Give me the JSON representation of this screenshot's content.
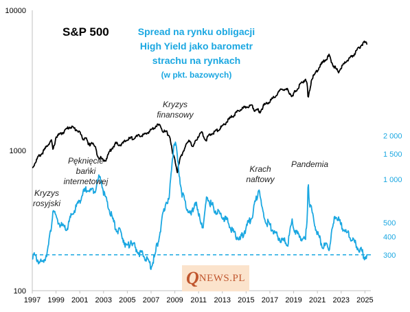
{
  "chart_data": {
    "type": "line",
    "title": "S&P 500",
    "secondary_title": [
      "Spread na rynku obligacji",
      "High Yield jako barometr",
      "strachu na rynkach"
    ],
    "secondary_subtitle": "(w pkt. bazowych)",
    "x_ticks": [
      "1997",
      "1999",
      "2001",
      "2003",
      "2005",
      "2007",
      "2009",
      "2011",
      "2013",
      "2015",
      "2017",
      "2019",
      "2021",
      "2023",
      "2025"
    ],
    "xlim": [
      1997,
      2025.5
    ],
    "left_axis": {
      "scale": "log",
      "ticks": [
        "10000",
        "1000",
        "100"
      ],
      "ylim": [
        100,
        10000
      ]
    },
    "right_axis": {
      "scale": "log",
      "ticks": [
        "2 000",
        "1 500",
        "1 000",
        "500",
        "400",
        "300"
      ],
      "ylim": [
        230,
        2300
      ]
    },
    "series": [
      {
        "name": "S&P 500",
        "axis": "left",
        "color": "#000000",
        "x": [
          1997.0,
          1997.5,
          1997.8,
          1998.0,
          1998.3,
          1998.6,
          1998.75,
          1999.0,
          1999.3,
          1999.6,
          1999.8,
          2000.0,
          2000.25,
          2000.5,
          2000.75,
          2001.0,
          2001.25,
          2001.5,
          2001.7,
          2001.85,
          2002.0,
          2002.3,
          2002.55,
          2002.8,
          2003.0,
          2003.2,
          2003.5,
          2004.0,
          2004.5,
          2005.0,
          2005.5,
          2006.0,
          2006.5,
          2007.0,
          2007.5,
          2007.8,
          2008.0,
          2008.3,
          2008.6,
          2008.8,
          2009.0,
          2009.2,
          2009.5,
          2010.0,
          2010.3,
          2010.5,
          2011.0,
          2011.3,
          2011.6,
          2011.8,
          2012.0,
          2012.5,
          2013.0,
          2013.5,
          2014.0,
          2014.5,
          2015.0,
          2015.5,
          2015.7,
          2016.0,
          2016.1,
          2016.5,
          2017.0,
          2017.5,
          2018.0,
          2018.5,
          2018.95,
          2019.0,
          2019.5,
          2020.0,
          2020.15,
          2020.22,
          2020.5,
          2021.0,
          2021.5,
          2022.0,
          2022.3,
          2022.75,
          2023.0,
          2023.5,
          2024.0,
          2024.5,
          2024.9,
          2025.2
        ],
        "values": [
          750,
          900,
          950,
          1000,
          1100,
          1180,
          1000,
          1250,
          1300,
          1350,
          1400,
          1450,
          1480,
          1440,
          1400,
          1350,
          1200,
          1250,
          1100,
          1100,
          1150,
          1050,
          900,
          880,
          850,
          860,
          980,
          1120,
          1100,
          1200,
          1230,
          1270,
          1300,
          1400,
          1520,
          1500,
          1380,
          1350,
          1250,
          950,
          870,
          700,
          900,
          1120,
          1180,
          1050,
          1280,
          1340,
          1180,
          1250,
          1300,
          1380,
          1480,
          1650,
          1800,
          1950,
          2050,
          2100,
          1950,
          1950,
          1850,
          2100,
          2250,
          2450,
          2750,
          2700,
          2400,
          2550,
          2900,
          3250,
          2900,
          2300,
          3200,
          3750,
          4300,
          4750,
          4100,
          3650,
          3900,
          4400,
          4750,
          5400,
          5900,
          5750
        ]
      },
      {
        "name": "High Yield spread",
        "axis": "right",
        "color": "#1aa7e1",
        "x": [
          1997.0,
          1997.4,
          1997.8,
          1998.1,
          1998.35,
          1998.6,
          1998.75,
          1998.9,
          1999.1,
          1999.5,
          1999.9,
          2000.3,
          2000.7,
          2001.0,
          2001.3,
          2001.7,
          2001.9,
          2002.3,
          2002.6,
          2002.8,
          2003.0,
          2003.3,
          2003.6,
          2004.0,
          2004.5,
          2005.0,
          2005.3,
          2005.6,
          2006.0,
          2006.5,
          2007.0,
          2007.3,
          2007.5,
          2007.8,
          2008.0,
          2008.3,
          2008.5,
          2008.8,
          2008.95,
          2009.1,
          2009.3,
          2009.6,
          2010.0,
          2010.4,
          2010.7,
          2011.0,
          2011.4,
          2011.7,
          2012.0,
          2012.5,
          2013.0,
          2013.5,
          2014.0,
          2014.5,
          2015.0,
          2015.5,
          2015.9,
          2016.1,
          2016.3,
          2016.6,
          2017.0,
          2017.5,
          2018.0,
          2018.5,
          2018.9,
          2019.0,
          2019.3,
          2019.6,
          2020.0,
          2020.15,
          2020.22,
          2020.3,
          2020.6,
          2021.0,
          2021.5,
          2022.0,
          2022.5,
          2022.8,
          2023.0,
          2023.5,
          2024.0,
          2024.5,
          2024.8,
          2025.0,
          2025.2
        ],
        "values": [
          300,
          280,
          260,
          290,
          340,
          470,
          640,
          560,
          520,
          470,
          450,
          560,
          640,
          720,
          800,
          880,
          820,
          860,
          1020,
          1000,
          820,
          680,
          580,
          460,
          420,
          330,
          380,
          340,
          310,
          290,
          250,
          290,
          350,
          450,
          560,
          720,
          700,
          1400,
          1850,
          1650,
          1200,
          800,
          640,
          560,
          720,
          560,
          470,
          760,
          680,
          600,
          560,
          500,
          420,
          380,
          460,
          560,
          760,
          880,
          640,
          520,
          480,
          410,
          380,
          360,
          520,
          460,
          420,
          400,
          380,
          560,
          1050,
          720,
          560,
          420,
          340,
          340,
          560,
          520,
          480,
          420,
          380,
          330,
          310,
          290,
          300
        ]
      }
    ],
    "reference_line": {
      "axis": "right",
      "value": 300,
      "style": "dashed"
    },
    "annotations": [
      {
        "id": "rosyjski",
        "lines": [
          "Kryzys",
          "rosyjski"
        ]
      },
      {
        "id": "banki",
        "lines": [
          "Pęknięcie",
          "bańki",
          "internetowej"
        ]
      },
      {
        "id": "finansowy",
        "lines": [
          "Kryzys",
          "finansowy"
        ]
      },
      {
        "id": "naftowy",
        "lines": [
          "Krach",
          "naftowy"
        ]
      },
      {
        "id": "pandemia",
        "lines": [
          "Pandemia"
        ]
      }
    ]
  },
  "logo": {
    "q": "Q",
    "rest": "NEWS.PL"
  }
}
